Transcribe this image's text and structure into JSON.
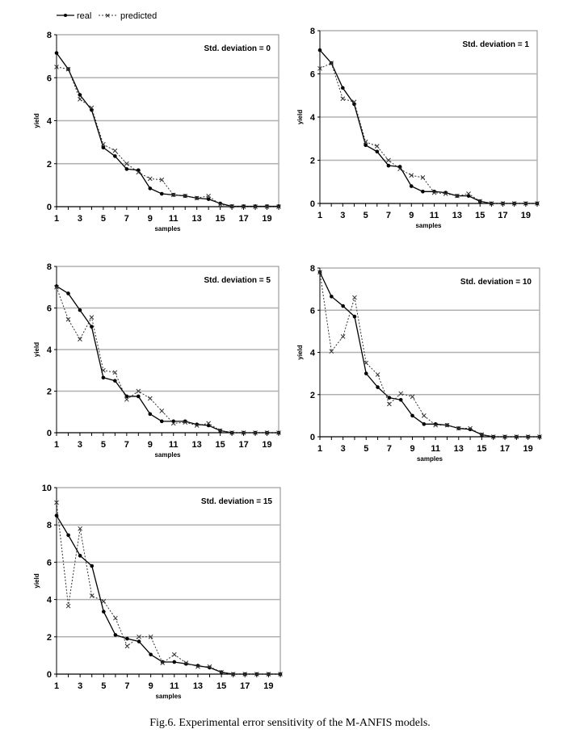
{
  "legend": {
    "real": "real",
    "predicted": "predicted"
  },
  "caption": "Fig.6. Experimental error sensitivity of the M-ANFIS models.",
  "colors": {
    "real": "#000000",
    "predicted": "#333333",
    "grid": "#b0b0b0",
    "frame": "#888888"
  },
  "chart_data": [
    {
      "type": "line",
      "title": "Std. deviation = 0",
      "xlabel": "samples",
      "ylabel": "yield",
      "xlim": [
        1,
        20
      ],
      "ylim": [
        0,
        8
      ],
      "yticks": [
        0,
        2,
        4,
        6,
        8
      ],
      "xticks": [
        1,
        3,
        5,
        7,
        9,
        11,
        13,
        15,
        17,
        19
      ],
      "grid": true,
      "x": [
        1,
        2,
        3,
        4,
        5,
        6,
        7,
        8,
        9,
        10,
        11,
        12,
        13,
        14,
        15,
        16,
        17,
        18,
        19,
        20
      ],
      "series": [
        {
          "name": "real",
          "values": [
            7.15,
            6.4,
            5.2,
            4.5,
            2.75,
            2.35,
            1.75,
            1.7,
            0.85,
            0.6,
            0.55,
            0.5,
            0.4,
            0.35,
            0.15,
            0.02,
            0.02,
            0.02,
            0.02,
            0.02
          ]
        },
        {
          "name": "predicted",
          "values": [
            6.5,
            6.4,
            5.0,
            4.6,
            2.9,
            2.6,
            2.0,
            1.6,
            1.3,
            1.25,
            0.55,
            0.5,
            0.4,
            0.5,
            0.1,
            0.02,
            0,
            0,
            0,
            0
          ]
        }
      ]
    },
    {
      "type": "line",
      "title": "Std. deviation = 1",
      "xlabel": "samples",
      "ylabel": "yield",
      "xlim": [
        1,
        20
      ],
      "ylim": [
        0,
        8
      ],
      "yticks": [
        0,
        2,
        4,
        6,
        8
      ],
      "xticks": [
        1,
        3,
        5,
        7,
        9,
        11,
        13,
        15,
        17,
        19
      ],
      "grid": true,
      "x": [
        1,
        2,
        3,
        4,
        5,
        6,
        7,
        8,
        9,
        10,
        11,
        12,
        13,
        14,
        15,
        16,
        17,
        18,
        19,
        20
      ],
      "series": [
        {
          "name": "real",
          "values": [
            7.1,
            6.5,
            5.35,
            4.6,
            2.7,
            2.4,
            1.75,
            1.7,
            0.8,
            0.55,
            0.55,
            0.5,
            0.35,
            0.35,
            0.1,
            0,
            0,
            0,
            0,
            0
          ]
        },
        {
          "name": "predicted",
          "values": [
            6.25,
            6.5,
            4.85,
            4.7,
            2.85,
            2.65,
            2.0,
            1.6,
            1.3,
            1.2,
            0.5,
            0.45,
            0.35,
            0.45,
            0.1,
            0,
            0,
            0,
            0,
            0
          ]
        }
      ]
    },
    {
      "type": "line",
      "title": "Std. deviation = 5",
      "xlabel": "samples",
      "ylabel": "yield",
      "xlim": [
        1,
        20
      ],
      "ylim": [
        0,
        8
      ],
      "yticks": [
        0,
        2,
        4,
        6,
        8
      ],
      "xticks": [
        1,
        3,
        5,
        7,
        9,
        11,
        13,
        15,
        17,
        19
      ],
      "grid": true,
      "x": [
        1,
        2,
        3,
        4,
        5,
        6,
        7,
        8,
        9,
        10,
        11,
        12,
        13,
        14,
        15,
        16,
        17,
        18,
        19,
        20
      ],
      "series": [
        {
          "name": "real",
          "values": [
            7.05,
            6.7,
            5.9,
            5.1,
            2.65,
            2.5,
            1.75,
            1.75,
            0.9,
            0.55,
            0.55,
            0.55,
            0.4,
            0.35,
            0.1,
            0,
            0,
            0,
            0,
            0
          ]
        },
        {
          "name": "predicted",
          "values": [
            7.0,
            5.45,
            4.5,
            5.55,
            3.0,
            2.9,
            1.6,
            2.0,
            1.65,
            1.05,
            0.45,
            0.5,
            0.35,
            0.45,
            0.1,
            0,
            0,
            0,
            0,
            0
          ]
        }
      ]
    },
    {
      "type": "line",
      "title": "Std. deviation = 10",
      "xlabel": "samples",
      "ylabel": "yield",
      "xlim": [
        1,
        20
      ],
      "ylim": [
        0,
        8
      ],
      "yticks": [
        0,
        2,
        4,
        6,
        8
      ],
      "xticks": [
        1,
        3,
        5,
        7,
        9,
        11,
        13,
        15,
        17,
        19
      ],
      "grid": true,
      "x": [
        1,
        2,
        3,
        4,
        5,
        6,
        7,
        8,
        9,
        10,
        11,
        12,
        13,
        14,
        15,
        16,
        17,
        18,
        19,
        20
      ],
      "series": [
        {
          "name": "real",
          "values": [
            7.8,
            6.65,
            6.2,
            5.7,
            3.0,
            2.35,
            1.85,
            1.75,
            1.0,
            0.6,
            0.6,
            0.55,
            0.4,
            0.35,
            0.1,
            0,
            0,
            0,
            0,
            0
          ]
        },
        {
          "name": "predicted",
          "values": [
            7.8,
            4.05,
            4.75,
            6.6,
            3.5,
            2.95,
            1.55,
            2.05,
            1.9,
            1.0,
            0.55,
            0.55,
            0.4,
            0.4,
            0.1,
            0,
            0,
            0,
            0,
            0
          ]
        }
      ]
    },
    {
      "type": "line",
      "title": "Std. deviation = 15",
      "xlabel": "samples",
      "ylabel": "yield",
      "xlim": [
        1,
        20
      ],
      "ylim": [
        0,
        10
      ],
      "yticks": [
        0,
        2,
        4,
        6,
        8,
        10
      ],
      "xticks": [
        1,
        3,
        5,
        7,
        9,
        11,
        13,
        15,
        17,
        19
      ],
      "grid": true,
      "x": [
        1,
        2,
        3,
        4,
        5,
        6,
        7,
        8,
        9,
        10,
        11,
        12,
        13,
        14,
        15,
        16,
        17,
        18,
        19,
        20
      ],
      "series": [
        {
          "name": "real",
          "values": [
            8.5,
            7.45,
            6.35,
            5.8,
            3.35,
            2.1,
            1.9,
            1.75,
            1.05,
            0.65,
            0.65,
            0.55,
            0.45,
            0.35,
            0.1,
            0,
            0,
            0,
            0,
            0
          ]
        },
        {
          "name": "predicted",
          "values": [
            9.2,
            3.65,
            7.8,
            4.2,
            3.9,
            3.0,
            1.5,
            2.0,
            2.0,
            0.6,
            1.05,
            0.6,
            0.4,
            0.4,
            0.1,
            0,
            0,
            0,
            0,
            0
          ]
        }
      ]
    }
  ]
}
